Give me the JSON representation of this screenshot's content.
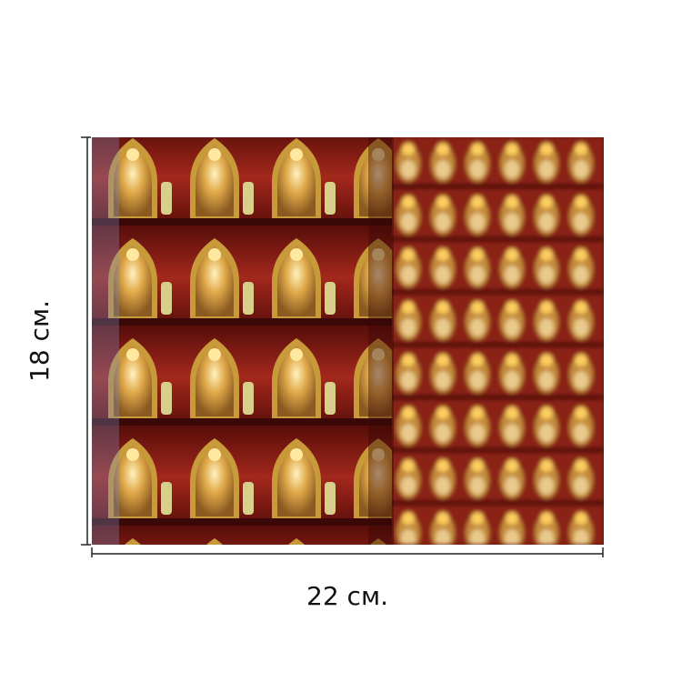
{
  "dimensions": {
    "height": "18 см.",
    "width": "22 см."
  }
}
